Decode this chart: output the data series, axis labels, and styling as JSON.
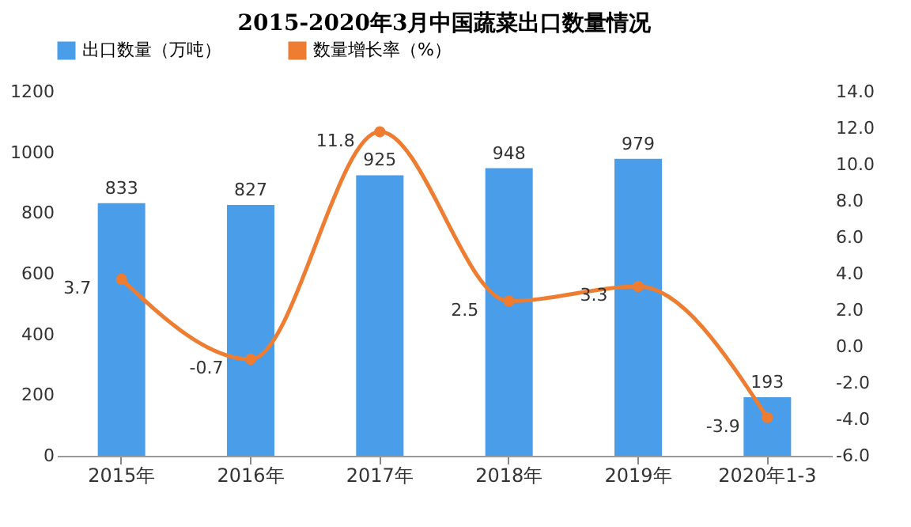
{
  "chart_data": {
    "type": "bar",
    "title": "2015-2020年3月中国蔬菜出口数量情况",
    "categories": [
      "2015年",
      "2016年",
      "2017年",
      "2018年",
      "2019年",
      "2020年1-3"
    ],
    "series": [
      {
        "name": "出口数量（万吨）",
        "color": "#4a9de8",
        "values": [
          833,
          827,
          925,
          948,
          979,
          193
        ]
      },
      {
        "name": "数量增长率（%）",
        "type": "line",
        "axis": "y2",
        "color": "#ee7d31",
        "values": [
          3.7,
          -0.7,
          11.8,
          2.5,
          3.3,
          -3.9
        ]
      }
    ],
    "ylim": [
      0,
      1200
    ],
    "yticks": [
      0,
      200,
      400,
      600,
      800,
      1000,
      1200
    ],
    "y2lim": [
      -6,
      14
    ],
    "y2ticks": [
      {
        "value": -6,
        "label": "-6.0"
      },
      {
        "value": -4,
        "label": "-4.0"
      },
      {
        "value": -2,
        "label": "-2.0"
      },
      {
        "value": 0,
        "label": "0.0"
      },
      {
        "value": 2,
        "label": "2.0"
      },
      {
        "value": 4,
        "label": "4.0"
      },
      {
        "value": 6,
        "label": "6.0"
      },
      {
        "value": 8,
        "label": "8.0"
      },
      {
        "value": 10,
        "label": "10.0"
      },
      {
        "value": 12,
        "label": "12.0"
      },
      {
        "value": 14,
        "label": "14.0"
      }
    ],
    "data_labels": true,
    "legend": "top",
    "grid": false,
    "marker": "circle",
    "line_style": "solid"
  }
}
